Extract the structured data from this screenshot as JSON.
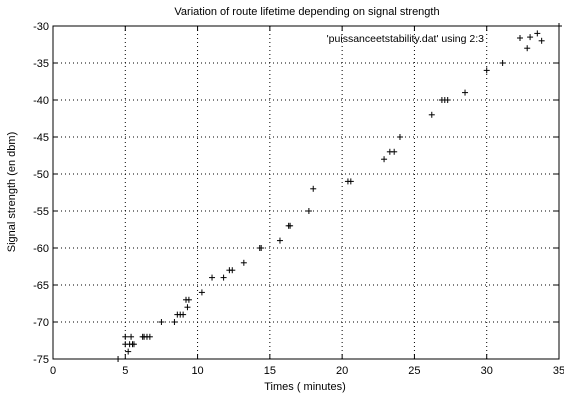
{
  "chart_data": {
    "type": "scatter",
    "title": "Variation of route lifetime depending on signal strength",
    "xlabel": "Times ( minutes)",
    "ylabel": "Signal strength  (en dbm)",
    "xlim": [
      0,
      35
    ],
    "ylim": [
      -75,
      -30
    ],
    "xticks": [
      0,
      5,
      10,
      15,
      20,
      25,
      30,
      35
    ],
    "yticks": [
      -75,
      -70,
      -65,
      -60,
      -55,
      -50,
      -45,
      -40,
      -35,
      -30
    ],
    "grid": true,
    "legend_position": "top-right",
    "series": [
      {
        "name": "'puissanceetstability.dat' using 2:3",
        "marker": "+",
        "color": "#000000",
        "points": [
          [
            4.5,
            -75
          ],
          [
            5.0,
            -72
          ],
          [
            5.0,
            -73
          ],
          [
            5.2,
            -74
          ],
          [
            5.3,
            -73
          ],
          [
            5.4,
            -72
          ],
          [
            5.5,
            -73
          ],
          [
            5.6,
            -73
          ],
          [
            6.2,
            -72
          ],
          [
            6.3,
            -72
          ],
          [
            6.5,
            -72
          ],
          [
            6.7,
            -72
          ],
          [
            7.5,
            -70
          ],
          [
            8.4,
            -70
          ],
          [
            8.6,
            -69
          ],
          [
            8.8,
            -69
          ],
          [
            9.0,
            -69
          ],
          [
            9.2,
            -67
          ],
          [
            9.3,
            -68
          ],
          [
            9.4,
            -67
          ],
          [
            10.3,
            -66
          ],
          [
            11.0,
            -64
          ],
          [
            11.8,
            -64
          ],
          [
            12.2,
            -63
          ],
          [
            12.4,
            -63
          ],
          [
            13.2,
            -62
          ],
          [
            14.3,
            -60
          ],
          [
            14.4,
            -60
          ],
          [
            15.7,
            -59
          ],
          [
            16.3,
            -57
          ],
          [
            16.4,
            -57
          ],
          [
            17.7,
            -55
          ],
          [
            18.0,
            -52
          ],
          [
            20.4,
            -51
          ],
          [
            20.6,
            -51
          ],
          [
            22.9,
            -48
          ],
          [
            23.3,
            -47
          ],
          [
            23.6,
            -47
          ],
          [
            24.0,
            -45
          ],
          [
            26.2,
            -42
          ],
          [
            26.9,
            -40
          ],
          [
            27.1,
            -40
          ],
          [
            27.3,
            -40
          ],
          [
            28.5,
            -39
          ],
          [
            30.0,
            -36
          ],
          [
            31.1,
            -35
          ],
          [
            32.8,
            -33
          ],
          [
            33.0,
            -31.5
          ],
          [
            33.5,
            -31
          ],
          [
            33.8,
            -32
          ],
          [
            35.0,
            -30
          ]
        ]
      }
    ]
  }
}
